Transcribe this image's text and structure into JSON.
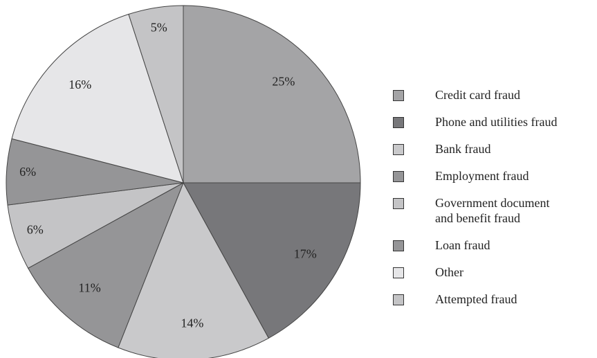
{
  "chart_data": {
    "type": "pie",
    "categories": [
      "Credit card fraud",
      "Phone and utilities fraud",
      "Bank fraud",
      "Employment fraud",
      "Government document\nand benefit fraud",
      "Loan fraud",
      "Other",
      "Attempted fraud"
    ],
    "values": [
      25,
      17,
      14,
      11,
      6,
      6,
      16,
      5
    ],
    "value_labels": [
      "25%",
      "17%",
      "14%",
      "11%",
      "6%",
      "6%",
      "16%",
      "5%"
    ],
    "colors": [
      "#a4a4a6",
      "#77777a",
      "#c9c9cb",
      "#959597",
      "#c4c4c6",
      "#959597",
      "#e6e6e8",
      "#c4c4c6"
    ],
    "legend": "right"
  }
}
